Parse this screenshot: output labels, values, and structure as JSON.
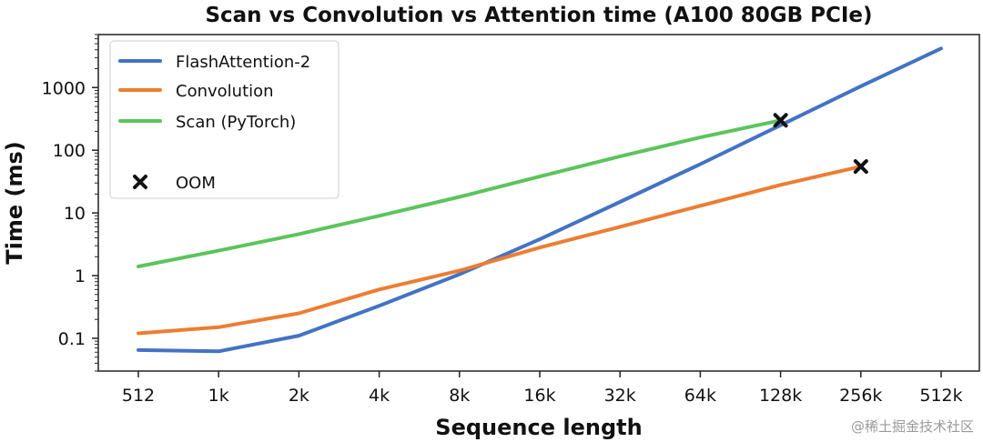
{
  "chart_data": {
    "type": "line",
    "title": "Scan vs Convolution vs Attention time (A100 80GB PCIe)",
    "xlabel": "Sequence length",
    "ylabel": "Time (ms)",
    "categories": [
      "512",
      "1k",
      "2k",
      "4k",
      "8k",
      "16k",
      "32k",
      "64k",
      "128k",
      "256k",
      "512k"
    ],
    "y_scale": "log",
    "ylim": [
      0.03,
      7000
    ],
    "y_ticks": [
      0.1,
      1,
      10,
      100,
      1000
    ],
    "y_tick_labels": [
      "0.1",
      "1",
      "10",
      "100",
      "1000"
    ],
    "grid": false,
    "legend_position": "top-left",
    "series": [
      {
        "name": "FlashAttention-2",
        "color": "#4472C4",
        "values": [
          0.065,
          0.062,
          0.11,
          0.33,
          1.05,
          3.8,
          15,
          60,
          250,
          1050,
          4200
        ]
      },
      {
        "name": "Convolution",
        "color": "#ED7D31",
        "values": [
          0.12,
          0.15,
          0.25,
          0.6,
          1.2,
          2.8,
          6,
          13,
          28,
          55,
          null
        ]
      },
      {
        "name": "Scan (PyTorch)",
        "color": "#5CC45C",
        "values": [
          1.4,
          2.5,
          4.6,
          9,
          18,
          38,
          80,
          160,
          300,
          null,
          null
        ]
      }
    ],
    "oom_markers": [
      {
        "series": "Scan (PyTorch)",
        "category": "128k",
        "value": 300
      },
      {
        "series": "Convolution",
        "category": "256k",
        "value": 55
      }
    ],
    "oom_label": "OOM"
  },
  "watermark": {
    "text": "@稀土掘金技术社区"
  }
}
